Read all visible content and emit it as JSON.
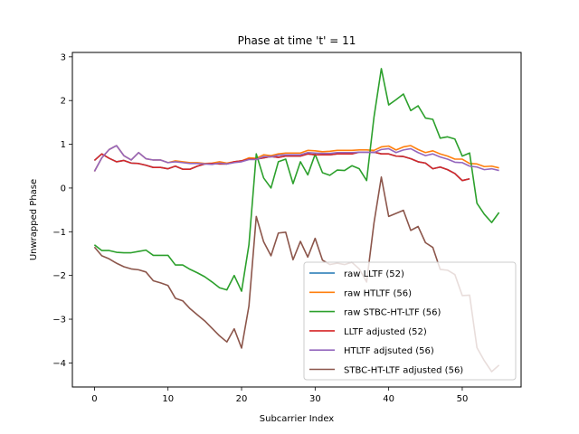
{
  "chart_data": {
    "type": "line",
    "title": "Phase at time 't' = 11",
    "xlabel": "Subcarrier Index",
    "ylabel": "Unwrapped Phase",
    "xlim": [
      -3,
      58
    ],
    "ylim": [
      -4.55,
      3.1
    ],
    "x_ticks": [
      0,
      10,
      20,
      30,
      40,
      50
    ],
    "y_ticks": [
      3,
      2,
      1,
      0,
      -1,
      -2,
      -3,
      -4
    ],
    "legend_position": "lower-right",
    "series": [
      {
        "name": "raw LLTF (52)",
        "color": "#1f77b4",
        "x": [
          0,
          1,
          2,
          3,
          4,
          5,
          6,
          7,
          8,
          9,
          10,
          11,
          12,
          13,
          14,
          15,
          16,
          17,
          18,
          19,
          20,
          21,
          22,
          23,
          24,
          25,
          26,
          27,
          28,
          29,
          30,
          31,
          32,
          33,
          34,
          35,
          36,
          37,
          38,
          39,
          40,
          41,
          42,
          43,
          44,
          45,
          46,
          47,
          48,
          49,
          50,
          51
        ],
        "values": [
          0.63,
          0.78,
          0.68,
          0.6,
          0.63,
          0.57,
          0.56,
          0.52,
          0.47,
          0.47,
          0.44,
          0.5,
          0.43,
          0.43,
          0.5,
          0.55,
          0.56,
          0.55,
          0.55,
          0.6,
          0.62,
          0.66,
          0.66,
          0.69,
          0.72,
          0.7,
          0.73,
          0.73,
          0.73,
          0.78,
          0.76,
          0.76,
          0.76,
          0.78,
          0.78,
          0.78,
          0.82,
          0.82,
          0.82,
          0.78,
          0.78,
          0.73,
          0.72,
          0.67,
          0.6,
          0.57,
          0.44,
          0.48,
          0.42,
          0.33,
          0.17,
          0.21
        ]
      },
      {
        "name": "raw HTLTF (56)",
        "color": "#ff7f0e",
        "x": [
          0,
          1,
          2,
          3,
          4,
          5,
          6,
          7,
          8,
          9,
          10,
          11,
          12,
          13,
          14,
          15,
          16,
          17,
          18,
          19,
          20,
          21,
          22,
          23,
          24,
          25,
          26,
          27,
          28,
          29,
          30,
          31,
          32,
          33,
          34,
          35,
          36,
          37,
          38,
          39,
          40,
          41,
          42,
          43,
          44,
          45,
          46,
          47,
          48,
          49,
          50,
          51,
          52,
          53,
          54,
          55
        ],
        "values": [
          0.38,
          0.69,
          0.88,
          0.97,
          0.74,
          0.64,
          0.81,
          0.67,
          0.64,
          0.64,
          0.58,
          0.62,
          0.6,
          0.58,
          0.58,
          0.56,
          0.57,
          0.6,
          0.57,
          0.6,
          0.62,
          0.69,
          0.68,
          0.76,
          0.74,
          0.78,
          0.8,
          0.8,
          0.8,
          0.86,
          0.85,
          0.83,
          0.84,
          0.86,
          0.86,
          0.86,
          0.87,
          0.87,
          0.86,
          0.94,
          0.96,
          0.87,
          0.94,
          0.97,
          0.88,
          0.81,
          0.85,
          0.78,
          0.73,
          0.66,
          0.66,
          0.56,
          0.55,
          0.49,
          0.5,
          0.46
        ]
      },
      {
        "name": "raw STBC-HT-LTF (56)",
        "color": "#2ca02c",
        "x": [
          0,
          1,
          2,
          3,
          4,
          5,
          6,
          7,
          8,
          9,
          10,
          11,
          12,
          13,
          14,
          15,
          16,
          17,
          18,
          19,
          20,
          21,
          22,
          23,
          24,
          25,
          26,
          27,
          28,
          29,
          30,
          31,
          32,
          33,
          34,
          35,
          36,
          37,
          38,
          39,
          40,
          41,
          42,
          43,
          44,
          45,
          46,
          47,
          48,
          49,
          50,
          51,
          52,
          53,
          54,
          55
        ],
        "values": [
          -1.3,
          -1.43,
          -1.43,
          -1.47,
          -1.48,
          -1.48,
          -1.45,
          -1.42,
          -1.54,
          -1.54,
          -1.54,
          -1.76,
          -1.76,
          -1.86,
          -1.94,
          -2.03,
          -2.15,
          -2.28,
          -2.33,
          -2.0,
          -2.36,
          -1.3,
          0.78,
          0.23,
          0.0,
          0.6,
          0.66,
          0.1,
          0.6,
          0.3,
          0.77,
          0.35,
          0.29,
          0.41,
          0.4,
          0.51,
          0.44,
          0.17,
          1.62,
          2.73,
          1.9,
          2.02,
          2.15,
          1.77,
          1.88,
          1.6,
          1.57,
          1.14,
          1.17,
          1.12,
          0.73,
          0.8,
          -0.35,
          -0.6,
          -0.79,
          -0.56
        ]
      },
      {
        "name": "LLTF adjusted (52)",
        "color": "#d62728",
        "x": [
          0,
          1,
          2,
          3,
          4,
          5,
          6,
          7,
          8,
          9,
          10,
          11,
          12,
          13,
          14,
          15,
          16,
          17,
          18,
          19,
          20,
          21,
          22,
          23,
          24,
          25,
          26,
          27,
          28,
          29,
          30,
          31,
          32,
          33,
          34,
          35,
          36,
          37,
          38,
          39,
          40,
          41,
          42,
          43,
          44,
          45,
          46,
          47,
          48,
          49,
          50,
          51
        ],
        "values": [
          0.63,
          0.78,
          0.68,
          0.6,
          0.63,
          0.57,
          0.56,
          0.52,
          0.47,
          0.47,
          0.44,
          0.5,
          0.43,
          0.43,
          0.5,
          0.55,
          0.56,
          0.55,
          0.55,
          0.6,
          0.62,
          0.66,
          0.66,
          0.69,
          0.72,
          0.7,
          0.73,
          0.73,
          0.73,
          0.78,
          0.76,
          0.76,
          0.76,
          0.78,
          0.78,
          0.78,
          0.82,
          0.82,
          0.82,
          0.78,
          0.78,
          0.73,
          0.72,
          0.67,
          0.6,
          0.57,
          0.44,
          0.48,
          0.42,
          0.33,
          0.17,
          0.21
        ]
      },
      {
        "name": "HTLTF adjsuted (56)",
        "color": "#9467bd",
        "x": [
          0,
          1,
          2,
          3,
          4,
          5,
          6,
          7,
          8,
          9,
          10,
          11,
          12,
          13,
          14,
          15,
          16,
          17,
          18,
          19,
          20,
          21,
          22,
          23,
          24,
          25,
          26,
          27,
          28,
          29,
          30,
          31,
          32,
          33,
          34,
          35,
          36,
          37,
          38,
          39,
          40,
          41,
          42,
          43,
          44,
          45,
          46,
          47,
          48,
          49,
          50,
          51,
          52,
          53,
          54,
          55
        ],
        "values": [
          0.38,
          0.69,
          0.88,
          0.97,
          0.74,
          0.64,
          0.81,
          0.67,
          0.64,
          0.64,
          0.58,
          0.6,
          0.58,
          0.56,
          0.56,
          0.55,
          0.54,
          0.57,
          0.55,
          0.58,
          0.6,
          0.65,
          0.65,
          0.72,
          0.71,
          0.75,
          0.76,
          0.76,
          0.76,
          0.81,
          0.8,
          0.79,
          0.79,
          0.81,
          0.81,
          0.81,
          0.82,
          0.82,
          0.81,
          0.88,
          0.9,
          0.81,
          0.87,
          0.9,
          0.81,
          0.74,
          0.78,
          0.71,
          0.66,
          0.59,
          0.58,
          0.5,
          0.48,
          0.42,
          0.44,
          0.4
        ]
      },
      {
        "name": "STBC-HT-LTF adjusted (56)",
        "color": "#8c564b",
        "x": [
          0,
          1,
          2,
          3,
          4,
          5,
          6,
          7,
          8,
          9,
          10,
          11,
          12,
          13,
          14,
          15,
          16,
          17,
          18,
          19,
          20,
          21,
          22,
          23,
          24,
          25,
          26,
          27,
          28,
          29,
          30,
          31,
          32,
          33,
          34,
          35,
          36,
          37,
          38,
          39,
          40,
          41,
          42,
          43,
          44,
          45,
          46,
          47,
          48,
          49,
          50,
          51,
          52,
          53,
          54,
          55
        ],
        "values": [
          -1.35,
          -1.55,
          -1.62,
          -1.72,
          -1.8,
          -1.85,
          -1.87,
          -1.92,
          -2.12,
          -2.17,
          -2.23,
          -2.52,
          -2.58,
          -2.76,
          -2.9,
          -3.04,
          -3.21,
          -3.38,
          -3.52,
          -3.22,
          -3.66,
          -2.7,
          -0.65,
          -1.23,
          -1.55,
          -1.03,
          -1.01,
          -1.64,
          -1.22,
          -1.58,
          -1.15,
          -1.65,
          -1.75,
          -1.72,
          -1.75,
          -1.7,
          -1.85,
          -2.15,
          -0.8,
          0.25,
          -0.65,
          -0.58,
          -0.51,
          -0.97,
          -0.88,
          -1.25,
          -1.36,
          -1.86,
          -1.88,
          -1.98,
          -2.46,
          -2.45,
          -3.65,
          -3.95,
          -4.2,
          -4.05
        ]
      }
    ]
  }
}
